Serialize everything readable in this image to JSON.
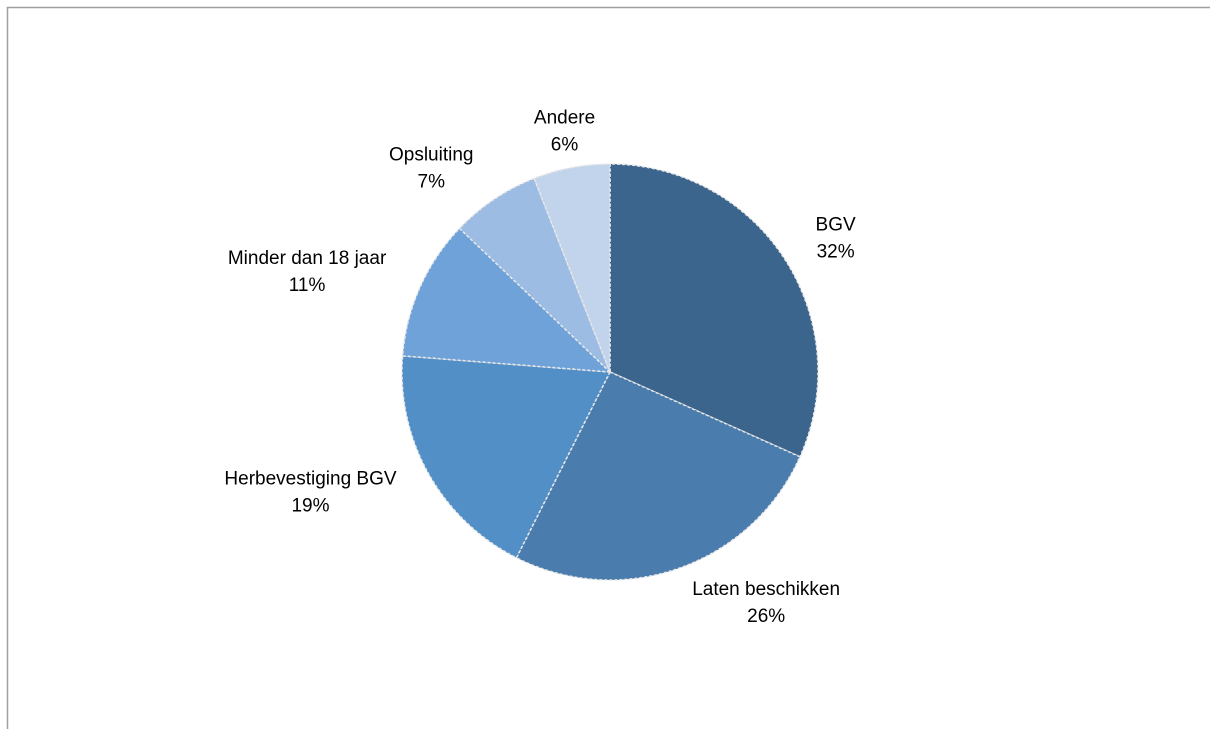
{
  "chart_data": {
    "type": "pie",
    "categories": [
      "BGV",
      "Laten beschikken",
      "Herbevestiging BGV",
      "Minder dan 18 jaar",
      "Opsluiting",
      "Andere"
    ],
    "values": [
      32,
      26,
      19,
      11,
      7,
      6
    ],
    "value_labels": [
      "32%",
      "26%",
      "19%",
      "11%",
      "7%",
      "6%"
    ],
    "colors": [
      "#3b658c",
      "#4a7cae",
      "#528fc6",
      "#6ea2d8",
      "#9dbce3",
      "#c2d3ec"
    ]
  }
}
